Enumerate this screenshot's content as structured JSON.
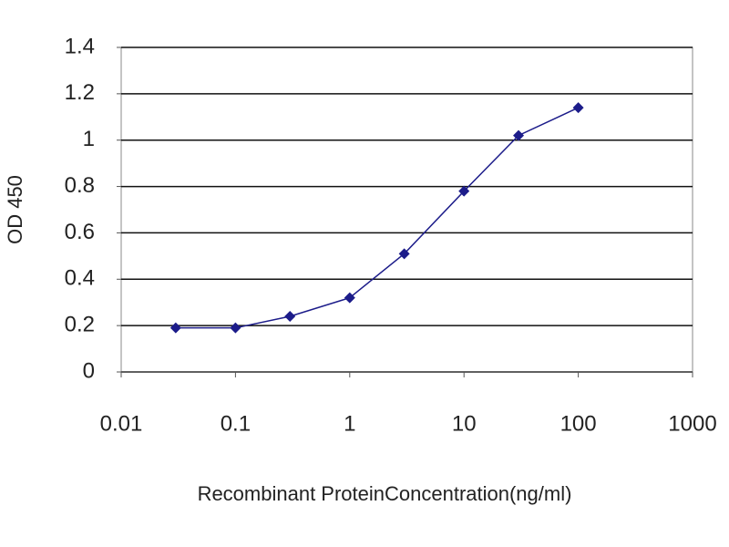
{
  "chart_data": {
    "type": "line",
    "x_label": "Recombinant ProteinConcentration(ng/ml)",
    "y_label": "OD 450",
    "x": [
      0.03,
      0.1,
      0.3,
      1,
      3,
      10,
      30,
      100
    ],
    "series": [
      {
        "color": "#1c1c8a",
        "values": [
          0.19,
          0.19,
          0.24,
          0.32,
          0.51,
          0.78,
          1.02,
          1.14
        ]
      }
    ],
    "x_log": true,
    "xlim": [
      0.01,
      1000
    ],
    "xticks": [
      0.01,
      0.1,
      1,
      10,
      100,
      1000
    ],
    "ylim": [
      0,
      1.4
    ],
    "yticks": [
      0,
      0.2,
      0.4,
      0.6,
      0.8,
      1,
      1.2,
      1.4
    ],
    "grid": true
  }
}
